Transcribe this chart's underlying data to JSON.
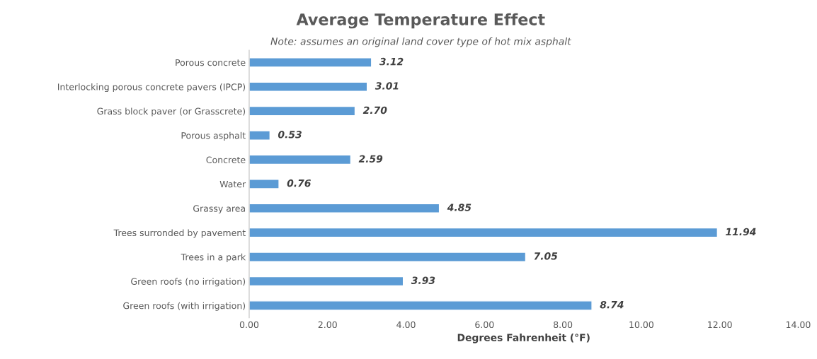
{
  "chart_data": {
    "type": "bar",
    "orientation": "horizontal",
    "title": "Average Temperature Effect",
    "subtitle": "Note: assumes an original land cover type of hot mix asphalt",
    "xlabel": "Degrees Fahrenheit (°F)",
    "categories": [
      "Porous concrete",
      "Interlocking porous concrete pavers (IPCP)",
      "Grass block paver (or Grasscrete)",
      "Porous asphalt",
      "Concrete",
      "Water",
      "Grassy area",
      "Trees surronded by pavement",
      "Trees in a park",
      "Green roofs (no irrigation)",
      "Green roofs (with irrigation)"
    ],
    "values": [
      3.12,
      3.01,
      2.7,
      0.53,
      2.59,
      0.76,
      4.85,
      11.94,
      7.05,
      3.93,
      8.74
    ],
    "value_labels": [
      "3.12",
      "3.01",
      "2.70",
      "0.53",
      "2.59",
      "0.76",
      "4.85",
      "11.94",
      "7.05",
      "3.93",
      "8.74"
    ],
    "color": "#5b9bd5",
    "xlim": [
      0,
      14
    ],
    "xticks": [
      {
        "value": 0,
        "label": "0.00"
      },
      {
        "value": 2,
        "label": "2.00"
      },
      {
        "value": 4,
        "label": "4.00"
      },
      {
        "value": 6,
        "label": "6.00"
      },
      {
        "value": 8,
        "label": "8.00"
      },
      {
        "value": 10,
        "label": "10.00"
      },
      {
        "value": 12,
        "label": "12.00"
      },
      {
        "value": 14,
        "label": "14.00"
      }
    ],
    "grid": false
  }
}
